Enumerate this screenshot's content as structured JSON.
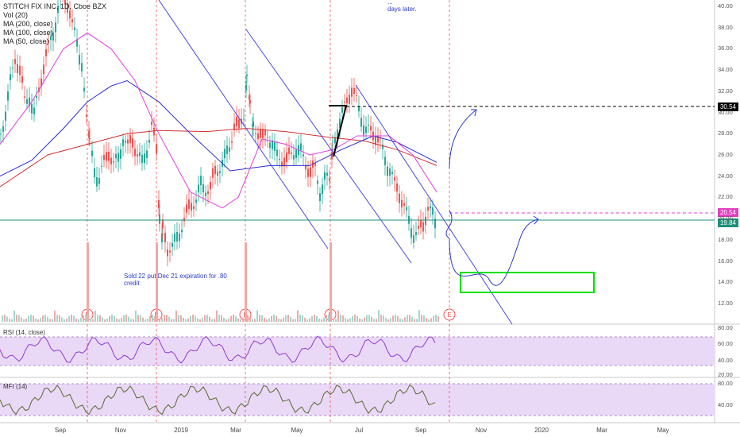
{
  "legend": {
    "symbol": "STITCH FIX INC, 1D, Cboe BZX",
    "vol": "Vol (20)",
    "ma200": "MA (200, close)",
    "ma100": "MA (100, close)",
    "ma50": "MA (50, close)"
  },
  "panes": {
    "rsi_label": "RSI (14, close)",
    "mfi_label": "MFI (14)"
  },
  "annotations": {
    "put_note_line1": "Sold 22 put Dec 21 expiration for .80",
    "put_note_line2": "credit",
    "top_note_line1": "...",
    "top_note_line2": "days later."
  },
  "price_tags": [
    {
      "value": "30.54",
      "color": "#000000"
    },
    {
      "value": "20.54",
      "color": "#e040c0"
    },
    {
      "value": "19.84",
      "color": "#1f8f7a"
    }
  ],
  "colors": {
    "up": "#26a69a",
    "down": "#ef5350",
    "ma200": "#d03030",
    "ma100": "#2a2ad0",
    "ma50": "#e040e0",
    "channel": "#4a4ae0",
    "earnings": "#ef5350",
    "box": "#00e000",
    "path": "#2a3ac8"
  },
  "chart_data": {
    "type": "candlestick",
    "title": "STITCH FIX INC, 1D, Cboe BZX",
    "x_ticks": [
      "Sep",
      "Nov",
      "2019",
      "Mar",
      "May",
      "Jul",
      "Sep",
      "Nov",
      "2020",
      "Mar",
      "May"
    ],
    "y_ticks": [
      "40.00",
      "38.00",
      "36.00",
      "34.00",
      "32.00",
      "30.00",
      "28.00",
      "26.00",
      "24.00",
      "22.00",
      "20.00",
      "18.00",
      "16.00",
      "14.00",
      "12.00"
    ],
    "ylim": [
      11,
      40.5
    ],
    "rsi_ticks": [
      "80.00",
      "60.00",
      "40.00",
      "20.00"
    ],
    "mfi_ticks": [
      "80.00",
      "40.00"
    ],
    "earnings_marker": "E",
    "horizontal_levels": [
      30.54,
      20.54,
      19.84
    ],
    "target_box": {
      "price_low": 13.0,
      "price_high": 15.0
    },
    "close_path": [
      [
        0,
        28
      ],
      [
        6,
        30.5
      ],
      [
        12,
        33
      ],
      [
        18,
        35
      ],
      [
        24,
        33.5
      ],
      [
        30,
        31
      ],
      [
        36,
        32
      ],
      [
        42,
        30
      ],
      [
        48,
        32
      ],
      [
        54,
        34
      ],
      [
        60,
        36
      ],
      [
        66,
        38
      ],
      [
        72,
        40
      ],
      [
        78,
        41
      ],
      [
        84,
        40
      ],
      [
        90,
        38
      ],
      [
        96,
        37
      ],
      [
        102,
        35
      ],
      [
        108,
        29
      ],
      [
        112,
        27
      ],
      [
        118,
        25
      ],
      [
        124,
        24
      ],
      [
        130,
        25
      ],
      [
        136,
        26
      ],
      [
        142,
        25
      ],
      [
        148,
        26
      ],
      [
        154,
        28
      ],
      [
        160,
        26.5
      ],
      [
        166,
        27
      ],
      [
        172,
        26
      ],
      [
        178,
        25.5
      ],
      [
        184,
        27
      ],
      [
        190,
        28.5
      ],
      [
        196,
        26
      ],
      [
        200,
        20
      ],
      [
        204,
        18.5
      ],
      [
        210,
        17
      ],
      [
        216,
        17.5
      ],
      [
        222,
        18.5
      ],
      [
        228,
        19.5
      ],
      [
        234,
        20
      ],
      [
        240,
        21
      ],
      [
        246,
        22
      ],
      [
        252,
        23.5
      ],
      [
        258,
        23
      ],
      [
        264,
        22.5
      ],
      [
        270,
        24
      ],
      [
        276,
        25
      ],
      [
        282,
        26
      ],
      [
        288,
        27
      ],
      [
        294,
        28.5
      ],
      [
        300,
        28
      ],
      [
        306,
        30
      ],
      [
        310,
        34
      ],
      [
        314,
        31
      ],
      [
        318,
        29
      ],
      [
        324,
        28
      ],
      [
        330,
        27
      ],
      [
        336,
        28
      ],
      [
        342,
        27.5
      ],
      [
        348,
        26
      ],
      [
        354,
        25.5
      ],
      [
        360,
        25
      ],
      [
        366,
        26
      ],
      [
        372,
        27
      ],
      [
        378,
        26.5
      ],
      [
        384,
        25
      ],
      [
        390,
        24
      ],
      [
        396,
        24.5
      ],
      [
        402,
        23
      ],
      [
        408,
        24
      ],
      [
        414,
        23.5
      ],
      [
        418,
        27
      ],
      [
        424,
        29
      ],
      [
        430,
        30
      ],
      [
        436,
        31
      ],
      [
        442,
        31.8
      ],
      [
        448,
        31
      ],
      [
        454,
        30
      ],
      [
        460,
        28.5
      ],
      [
        466,
        28
      ],
      [
        472,
        27.5
      ],
      [
        478,
        27
      ],
      [
        484,
        26
      ],
      [
        490,
        25
      ],
      [
        496,
        23
      ],
      [
        502,
        22
      ],
      [
        508,
        21
      ],
      [
        514,
        20
      ],
      [
        520,
        19
      ],
      [
        526,
        18.5
      ],
      [
        532,
        19
      ],
      [
        538,
        21
      ],
      [
        544,
        20.5
      ],
      [
        550,
        19.5
      ]
    ]
  }
}
